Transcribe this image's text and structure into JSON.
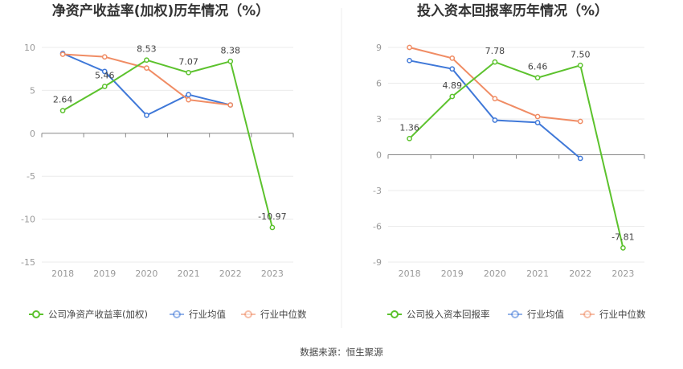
{
  "chart_data": [
    {
      "type": "line",
      "title": "净资产收益率(加权)历年情况（%）",
      "categories": [
        "2018",
        "2019",
        "2020",
        "2021",
        "2022",
        "2023"
      ],
      "ylim": [
        -15,
        10
      ],
      "yticks": [
        10,
        5,
        0,
        -5,
        -10,
        -15
      ],
      "series": [
        {
          "name": "公司净资产收益率(加权)",
          "color": "#5cc22d",
          "values": [
            2.64,
            5.46,
            8.53,
            7.07,
            8.38,
            -10.97
          ],
          "labels": [
            "2.64",
            "5.46",
            "8.53",
            "7.07",
            "8.38",
            "-10.97"
          ]
        },
        {
          "name": "行业均值",
          "color": "#3f78d8",
          "values": [
            9.3,
            7.2,
            2.1,
            4.5,
            3.3,
            null
          ]
        },
        {
          "name": "行业中位数",
          "color": "#f08c64",
          "values": [
            9.2,
            8.9,
            7.6,
            3.9,
            3.3,
            null
          ]
        }
      ],
      "legend": "bottom",
      "grid": true
    },
    {
      "type": "line",
      "title": "投入资本回报率历年情况（%）",
      "categories": [
        "2018",
        "2019",
        "2020",
        "2021",
        "2022",
        "2023"
      ],
      "ylim": [
        -9,
        9
      ],
      "yticks": [
        9,
        6,
        3,
        0,
        -3,
        -6,
        -9
      ],
      "series": [
        {
          "name": "公司投入资本回报率",
          "color": "#5cc22d",
          "values": [
            1.36,
            4.89,
            7.78,
            6.46,
            7.5,
            -7.81
          ],
          "labels": [
            "1.36",
            "4.89",
            "7.78",
            "6.46",
            "7.50",
            "-7.81"
          ]
        },
        {
          "name": "行业均值",
          "color": "#3f78d8",
          "values": [
            7.9,
            7.2,
            2.9,
            2.7,
            -0.3,
            null
          ]
        },
        {
          "name": "行业中位数",
          "color": "#f08c64",
          "values": [
            9.0,
            8.1,
            4.7,
            3.2,
            2.8,
            null
          ]
        }
      ],
      "legend": "bottom",
      "grid": true
    }
  ],
  "source_text": "数据来源：恒生聚源"
}
